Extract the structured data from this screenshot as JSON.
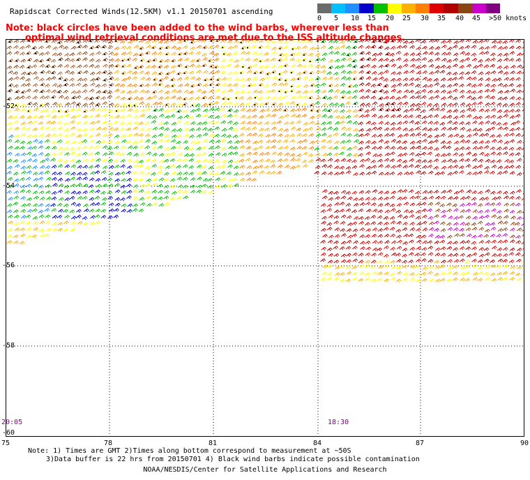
{
  "title": "Rapidscat Corrected Winds(12.5KM) v1.1 20150701 ascending",
  "note_line1": "Note: black circles have been added to the wind barbs, wherever less than",
  "note_line2": "optimal wind retrieval conditions are met due to the ISS altitude changes.",
  "scale": {
    "labels": [
      "0",
      "5",
      "10",
      "15",
      "20",
      "25",
      "30",
      "35",
      "40",
      "45",
      ">50 knots"
    ],
    "colors": [
      "#6b6b6b",
      "#00bfff",
      "#1e90ff",
      "#0000cd",
      "#00c000",
      "#ffff00",
      "#ffb000",
      "#ff8000",
      "#e00000",
      "#b00000",
      "#8b4513",
      "#cc00cc",
      "#800080"
    ]
  },
  "axes": {
    "x_ticks": [
      "75",
      "78",
      "81",
      "84",
      "87",
      "90"
    ],
    "y_ticks": [
      "-52",
      "-54",
      "-56",
      "-58",
      "-60"
    ],
    "x_range": [
      75,
      90
    ],
    "y_range": [
      -60,
      -50
    ]
  },
  "times": [
    "20:05",
    "18:30"
  ],
  "footer": {
    "line1": "Note: 1) Times are GMT 2)Times along bottom correspond to measurement at ~50S",
    "line2": "3)Data buffer is 22 hrs from 20150701 4) Black wind barbs indicate possible contamination",
    "line3": "NOAA/NESDIS/Center for Satellite Applications and Research"
  }
}
